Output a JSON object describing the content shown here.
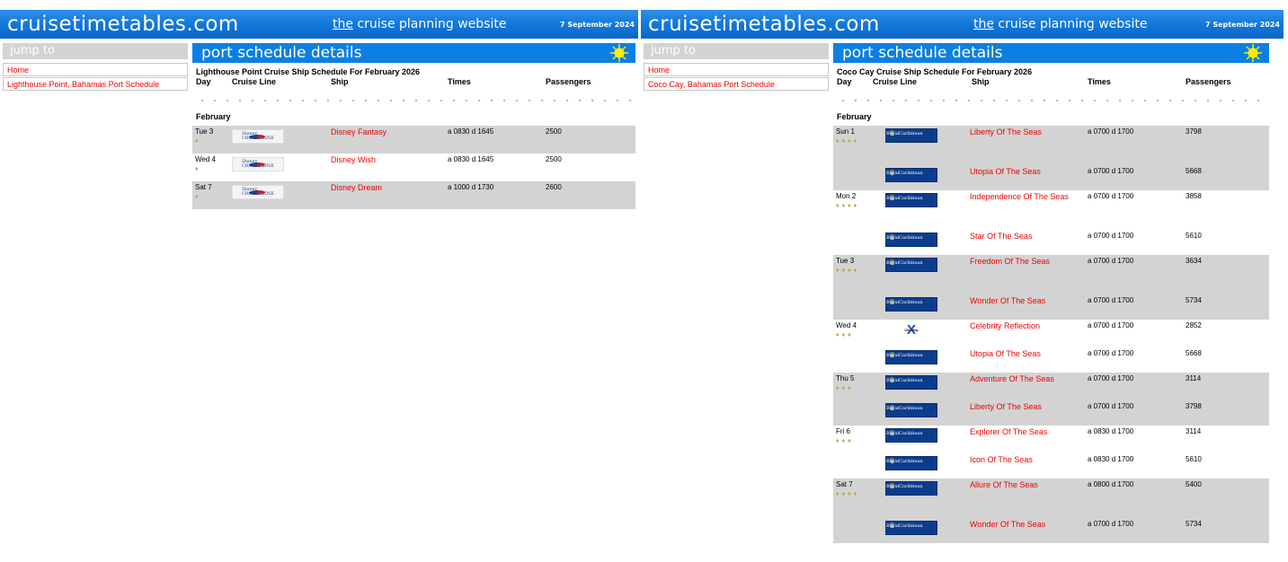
{
  "left": {
    "header": {
      "site_title": "cruisetimetables.com",
      "tag_the": "the",
      "tag_rest": " cruise planning website",
      "date": "7 September 2024"
    },
    "sidebar": {
      "jump_label": "jump to",
      "links": [
        "Home",
        "Lighthouse Point, Bahamas Port Schedule"
      ]
    },
    "section_title": "port schedule details",
    "schedule_title": "Lighthouse Point Cruise Ship Schedule For February 2026",
    "columns": [
      "Day",
      "Cruise Line",
      "Ship",
      "Times",
      "Passengers"
    ],
    "month": "February",
    "rows": [
      {
        "day": "Tue 3",
        "line": "disney-cruise-line-logo",
        "ship": "Disney Fantasy",
        "times": "a 0830 d 1645",
        "pax": "2500",
        "icons": 1
      },
      {
        "day": "Wed 4",
        "line": "disney-cruise-line-logo",
        "ship": "Disney Wish",
        "times": "a 0830 d 1645",
        "pax": "2500",
        "icons": 1
      },
      {
        "day": "Sat 7",
        "line": "disney-cruise-line-logo",
        "ship": "Disney Dream",
        "times": "a 1000 d 1730",
        "pax": "2600",
        "icons": 1
      }
    ]
  },
  "right": {
    "header": {
      "site_title": "cruisetimetables.com",
      "tag_the": "the",
      "tag_rest": " cruise planning website",
      "date": "7 September 2024"
    },
    "sidebar": {
      "jump_label": "jump to",
      "links": [
        "Home",
        "Coco Cay, Bahamas Port Schedule"
      ]
    },
    "section_title": "port schedule details",
    "schedule_title": "Coco Cay Cruise Ship Schedule For February 2026",
    "columns": [
      "Day",
      "Cruise Line",
      "Ship",
      "Times",
      "Passengers"
    ],
    "month": "February",
    "rows": [
      {
        "day": "Sun 1",
        "line": "royal-caribbean-logo",
        "ship": "Liberty Of The Seas",
        "times": "a 0700 d 1700",
        "pax": "3798",
        "icons": 4
      },
      {
        "day": "",
        "line": "royal-caribbean-logo",
        "ship": "Utopia Of The Seas",
        "times": "a 0700 d 1700",
        "pax": "5668",
        "icons": 0
      },
      {
        "day": "Mon 2",
        "line": "royal-caribbean-logo",
        "ship": "Independence Of The Seas",
        "times": "a 0700 d 1700",
        "pax": "3858",
        "icons": 4
      },
      {
        "day": "",
        "line": "royal-caribbean-logo",
        "ship": "Star Of The Seas",
        "times": "a 0700 d 1700",
        "pax": "5610",
        "icons": 0
      },
      {
        "day": "Tue 3",
        "line": "royal-caribbean-logo",
        "ship": "Freedom Of The Seas",
        "times": "a 0700 d 1700",
        "pax": "3634",
        "icons": 4
      },
      {
        "day": "",
        "line": "royal-caribbean-logo",
        "ship": "Wonder Of The Seas",
        "times": "a 0700 d 1700",
        "pax": "5734",
        "icons": 0
      },
      {
        "day": "Wed 4",
        "line": "celebrity-cruises-logo",
        "ship": "Celebrity Reflection",
        "times": "a 0700 d 1700",
        "pax": "2852",
        "icons": 3
      },
      {
        "day": "",
        "line": "royal-caribbean-logo",
        "ship": "Utopia Of The Seas",
        "times": "a 0700 d 1700",
        "pax": "5668",
        "icons": 0
      },
      {
        "day": "Thu 5",
        "line": "royal-caribbean-logo",
        "ship": "Adventure Of The Seas",
        "times": "a 0700 d 1700",
        "pax": "3114",
        "icons": 3
      },
      {
        "day": "",
        "line": "royal-caribbean-logo",
        "ship": "Liberty Of The Seas",
        "times": "a 0700 d 1700",
        "pax": "3798",
        "icons": 0
      },
      {
        "day": "Fri 6",
        "line": "royal-caribbean-logo",
        "ship": "Explorer Of The Seas",
        "times": "a 0830 d 1700",
        "pax": "3114",
        "icons": 3
      },
      {
        "day": "",
        "line": "royal-caribbean-logo",
        "ship": "Icon Of The Seas",
        "times": "a 0830 d 1700",
        "pax": "5610",
        "icons": 0
      },
      {
        "day": "Sat 7",
        "line": "royal-caribbean-logo",
        "ship": "Allure Of The Seas",
        "times": "a 0800 d 1700",
        "pax": "5400",
        "icons": 4
      },
      {
        "day": "",
        "line": "royal-caribbean-logo",
        "ship": "Wonder Of The Seas",
        "times": "a 0700 d 1700",
        "pax": "5734",
        "icons": 0
      }
    ]
  },
  "colors": {
    "header_blue": "#1278dc",
    "section_blue": "#0d7fe3",
    "link_red": "#ee0000",
    "row_gray": "#d3d3d3"
  }
}
